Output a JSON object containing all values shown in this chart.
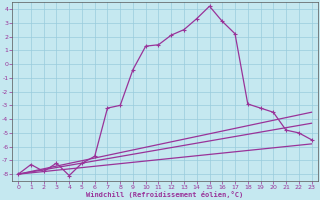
{
  "xlabel": "Windchill (Refroidissement éolien,°C)",
  "background_color": "#c5e8f0",
  "grid_color": "#99ccdd",
  "line_color": "#993399",
  "xlim": [
    -0.5,
    23.5
  ],
  "ylim": [
    -8.5,
    4.5
  ],
  "xticks": [
    0,
    1,
    2,
    3,
    4,
    5,
    6,
    7,
    8,
    9,
    10,
    11,
    12,
    13,
    14,
    15,
    16,
    17,
    18,
    19,
    20,
    21,
    22,
    23
  ],
  "yticks": [
    -8,
    -7,
    -6,
    -5,
    -4,
    -3,
    -2,
    -1,
    0,
    1,
    2,
    3,
    4
  ],
  "curve1_x": [
    0,
    1,
    2,
    3,
    4,
    5,
    6,
    7,
    8,
    9,
    10,
    11,
    12,
    13,
    14,
    15,
    16,
    17,
    18,
    19,
    20,
    21,
    22,
    23
  ],
  "curve1_y": [
    -8.0,
    -7.3,
    -7.8,
    -7.2,
    -8.1,
    -7.2,
    -6.7,
    -3.2,
    -3.0,
    -0.4,
    1.3,
    1.4,
    2.1,
    2.5,
    3.3,
    4.2,
    3.1,
    2.2,
    -2.9,
    -3.2,
    -3.5,
    -4.8,
    -5.0,
    -5.5
  ],
  "line1_x": [
    0,
    7,
    23
  ],
  "line1_y": [
    -8.0,
    -6.7,
    -3.5
  ],
  "line2_x": [
    0,
    7,
    23
  ],
  "line2_y": [
    -8.0,
    -6.9,
    -4.3
  ],
  "line3_x": [
    0,
    23
  ],
  "line3_y": [
    -8.0,
    -5.8
  ]
}
